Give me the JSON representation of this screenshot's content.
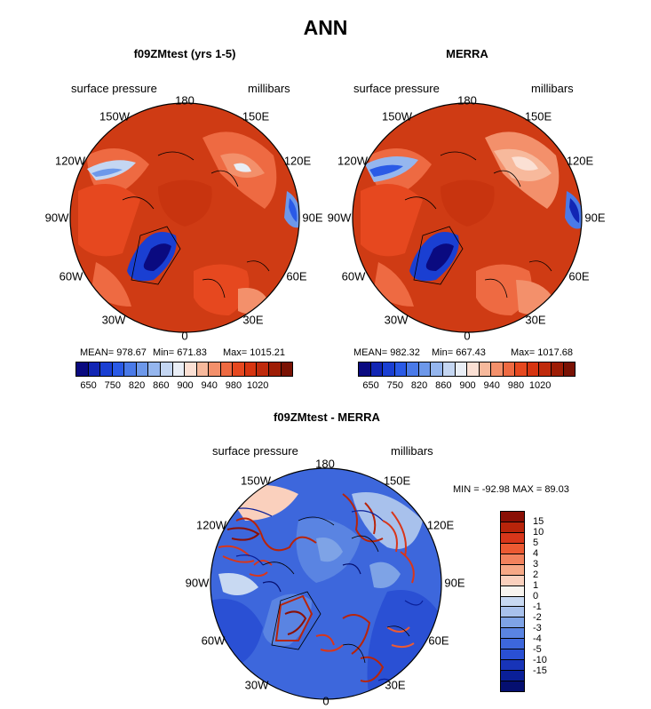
{
  "title": "ANN",
  "panels": [
    {
      "title": "f09ZMtest (yrs 1-5)",
      "left_label": "surface pressure",
      "right_label": "millibars",
      "stats": {
        "mean": "MEAN= 978.67",
        "min": "Min= 671.83",
        "max": "Max= 1015.21"
      }
    },
    {
      "title": "MERRA",
      "left_label": "surface pressure",
      "right_label": "millibars",
      "stats": {
        "mean": "MEAN= 982.32",
        "min": "Min= 667.43",
        "max": "Max= 1017.68"
      }
    },
    {
      "title": "f09ZMtest - MERRA",
      "left_label": "surface pressure",
      "right_label": "millibars",
      "stats": {
        "minmax": "MIN = -92.98 MAX = 89.03"
      }
    }
  ],
  "longitudes": [
    "180",
    "150E",
    "120E",
    "90E",
    "60E",
    "30E",
    "0",
    "30W",
    "60W",
    "90W",
    "120W",
    "150W"
  ],
  "abs_colorbar": {
    "colors": [
      "#0a0a80",
      "#1226b4",
      "#1a3fd2",
      "#2a5ae6",
      "#4a7ae8",
      "#6d98ea",
      "#95b6ee",
      "#c4d6f2",
      "#e9eef6",
      "#fbe0d4",
      "#f7b99c",
      "#f3906b",
      "#ee6a42",
      "#e6481f",
      "#d63410",
      "#bf2a0c",
      "#9e1d06",
      "#7a1204"
    ],
    "labels": [
      "650",
      "750",
      "820",
      "860",
      "900",
      "940",
      "980",
      "1020"
    ]
  },
  "diff_colorbar": {
    "colors": [
      "#8a0f05",
      "#b8240a",
      "#d8361a",
      "#ec5a32",
      "#f2825d",
      "#f6a886",
      "#fad0bd",
      "#f8f4ef",
      "#c8d9f2",
      "#a8c1ec",
      "#7ea3e6",
      "#5a84e2",
      "#3d67dc",
      "#2a50d4",
      "#1834b8",
      "#0a1f98",
      "#050f70"
    ],
    "labels": [
      "15",
      "10",
      "5",
      "4",
      "3",
      "2",
      "1",
      "0",
      "-1",
      "-2",
      "-3",
      "-4",
      "-5",
      "-10",
      "-15"
    ]
  }
}
